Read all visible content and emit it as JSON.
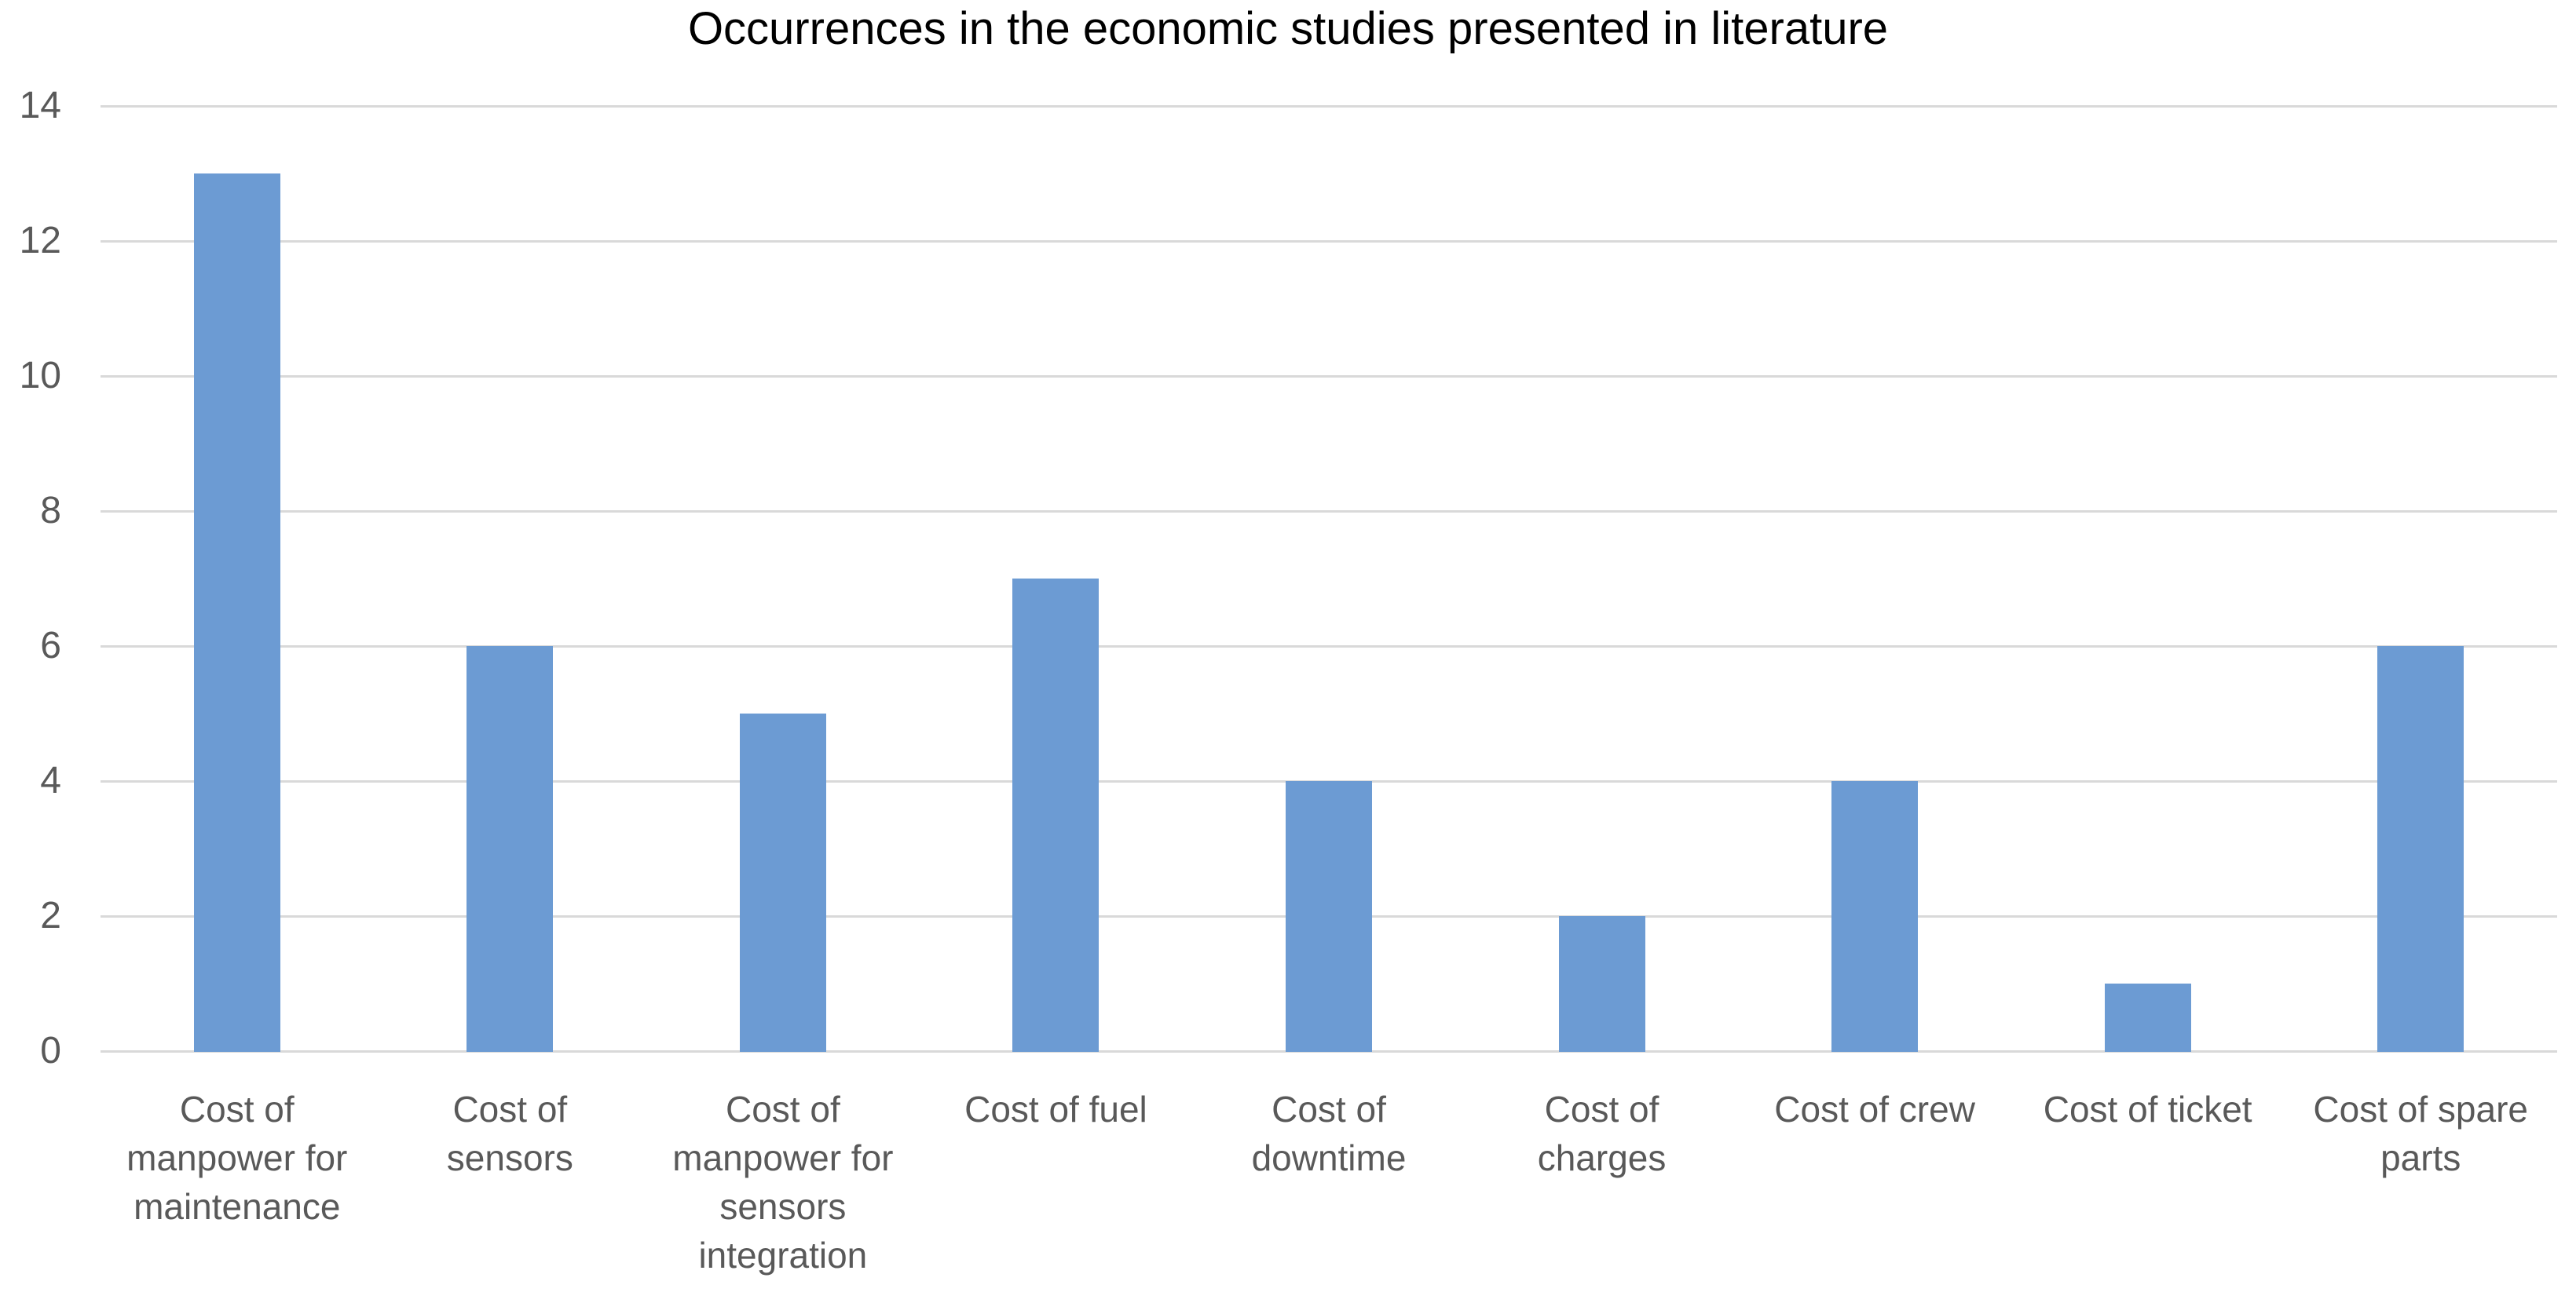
{
  "chart_data": {
    "type": "bar",
    "title": "Occurrences in the economic studies presented in literature",
    "categories": [
      "Cost of manpower for maintenance",
      "Cost of sensors",
      "Cost of manpower for sensors integration",
      "Cost of fuel",
      "Cost of downtime",
      "Cost of charges",
      "Cost of crew",
      "Cost of ticket",
      "Cost of spare parts"
    ],
    "values": [
      13,
      6,
      5,
      7,
      4,
      2,
      4,
      1,
      6
    ],
    "xlabel": "",
    "ylabel": "",
    "ylim": [
      0,
      14
    ],
    "yticks": [
      0,
      2,
      4,
      6,
      8,
      10,
      12,
      14
    ],
    "grid": "horizontal",
    "legend": "none"
  },
  "colors": {
    "bar": "#6C9BD3",
    "gridline": "#D9D9D9",
    "axis_label": "#595959",
    "title": "#000000"
  }
}
